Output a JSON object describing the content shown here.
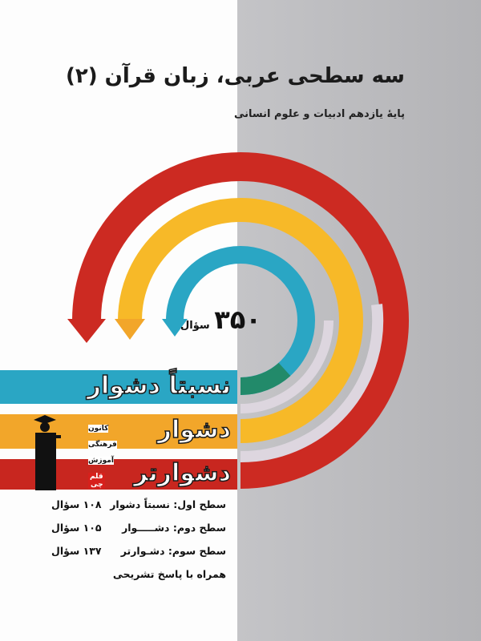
{
  "cover": {
    "title": "سه سطحی عربی، زبان قرآن (۲)",
    "subtitle": "پایهٔ یازدهم ادبیات و علوم انسانی",
    "total_count": "۳۵۰",
    "total_unit": "سؤال",
    "bands": [
      {
        "label": "نسبتاً دشوار",
        "color": "#2aa6c4"
      },
      {
        "label": "دشوار",
        "color": "#f2a62a"
      },
      {
        "label": "دشوارتر",
        "color": "#c8261f"
      }
    ],
    "arc_colors": {
      "red": "#cc2a22",
      "yellow": "#f7b928",
      "teal": "#2aa6c4",
      "green": "#228a6a"
    },
    "levels": [
      {
        "label": "سطح اول: نسبتاً دشوار",
        "value": "۱۰۸ سؤال"
      },
      {
        "label": "سطح دوم: دشـــــوار",
        "value": "۱۰۵ سؤال"
      },
      {
        "label": "سطح سوم: دشـوارتر",
        "value": "۱۳۷ سؤال"
      }
    ],
    "note": "همراه با پاسخ تشریحی",
    "publisher": {
      "line1": "کانون",
      "line2": "فرهنگی",
      "line3": "آموزش",
      "line4": "قلم چی"
    }
  }
}
